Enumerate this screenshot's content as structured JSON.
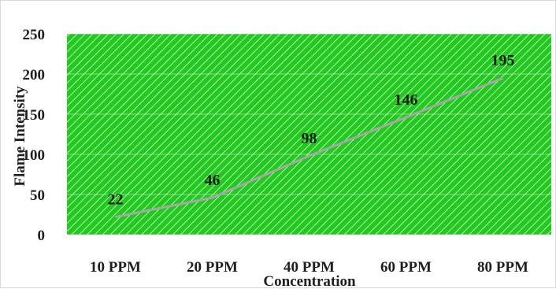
{
  "chart_data": {
    "type": "line",
    "categories": [
      "10 PPM",
      "20 PPM",
      "40 PPM",
      "60 PPM",
      "80 PPM"
    ],
    "series": [
      {
        "values": [
          22,
          46,
          98,
          146,
          195
        ]
      }
    ],
    "data_labels": [
      "22",
      "46",
      "98",
      "146",
      "195"
    ],
    "xlabel": "Concentration",
    "ylabel": "Flame Intensity",
    "ylim": [
      0,
      250
    ],
    "y_ticks": [
      0,
      50,
      100,
      150,
      200,
      250
    ],
    "y_tick_labels": [
      "0",
      "50",
      "100",
      "150",
      "200",
      "250"
    ],
    "grid": true,
    "legend": "none",
    "colors": {
      "plot_fill": "#22c91f",
      "plot_hatch": "#ffffff",
      "line": "#a6a6a6",
      "text": "#1f1f1f"
    }
  }
}
